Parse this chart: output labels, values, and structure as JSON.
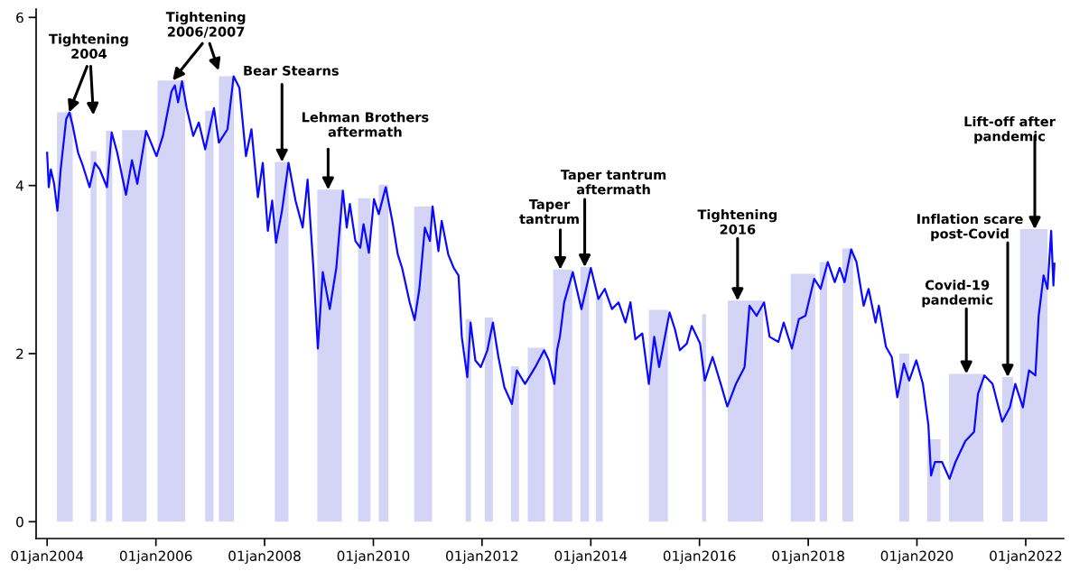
{
  "chart_data": {
    "type": "line",
    "xlim": [
      "2003-10-19",
      "2022-09-13"
    ],
    "ylim": [
      -0.2,
      6.1
    ],
    "xticks": [
      {
        "value": "2004-01-01",
        "label": "01jan2004"
      },
      {
        "value": "2006-01-01",
        "label": "01jan2006"
      },
      {
        "value": "2008-01-01",
        "label": "01jan2008"
      },
      {
        "value": "2010-01-01",
        "label": "01jan2010"
      },
      {
        "value": "2012-01-01",
        "label": "01jan2012"
      },
      {
        "value": "2014-01-01",
        "label": "01jan2014"
      },
      {
        "value": "2016-01-01",
        "label": "01jan2016"
      },
      {
        "value": "2018-01-01",
        "label": "01jan2018"
      },
      {
        "value": "2020-01-01",
        "label": "01jan2020"
      },
      {
        "value": "2022-01-01",
        "label": "01jan2022"
      }
    ],
    "yticks": [
      0,
      2,
      4,
      6
    ],
    "series": [
      {
        "type": "area",
        "color": "#d4d4f7",
        "x": [
          "2004-03-07",
          "2004-03-07",
          "2004-06-21",
          "2004-06-21",
          "2004-10-19",
          "2004-10-19",
          "2004-11-28",
          "2004-11-28",
          "2005-01-30",
          "2005-01-30",
          "2005-03-14",
          "2005-03-14",
          "2005-05-19",
          "2005-05-19",
          "2005-10-30",
          "2005-10-30",
          "2006-01-12",
          "2006-01-12",
          "2006-07-16",
          "2006-07-16",
          "2006-11-28",
          "2006-11-28",
          "2007-01-23",
          "2007-01-23",
          "2007-02-28",
          "2007-02-28",
          "2007-06-10",
          "2007-06-10",
          "2008-03-10",
          "2008-03-10",
          "2008-06-10",
          "2008-06-10",
          "2008-12-20",
          "2008-12-20",
          "2009-06-03",
          "2009-06-03",
          "2009-09-20",
          "2009-09-20",
          "2009-12-13",
          "2009-12-13",
          "2010-02-06",
          "2010-02-06",
          "2010-04-12",
          "2010-04-12",
          "2010-10-02",
          "2010-10-02",
          "2011-01-30",
          "2011-01-30",
          "2011-09-13",
          "2011-09-13",
          "2011-10-19",
          "2011-10-19",
          "2012-01-19",
          "2012-01-19",
          "2012-03-14",
          "2012-03-14",
          "2012-07-13",
          "2012-07-13",
          "2012-09-05",
          "2012-09-05",
          "2012-11-03",
          "2012-11-03",
          "2013-02-28",
          "2013-02-28",
          "2013-04-23",
          "2013-04-23",
          "2013-08-29",
          "2013-08-29",
          "2013-10-23",
          "2013-10-23",
          "2013-12-20",
          "2013-12-20",
          "2014-02-03",
          "2014-02-03",
          "2014-03-22",
          "2014-03-22",
          "2015-01-26",
          "2015-01-26",
          "2015-06-03",
          "2015-06-03",
          "2016-01-19",
          "2016-01-19",
          "2016-02-14",
          "2016-02-14",
          "2016-07-09",
          "2016-07-09",
          "2017-03-03",
          "2017-03-03",
          "2017-09-05",
          "2017-09-05",
          "2018-02-17",
          "2018-02-17",
          "2018-03-18",
          "2018-03-18",
          "2018-05-08",
          "2018-05-08",
          "2018-08-18",
          "2018-08-18",
          "2018-10-30",
          "2018-10-30",
          "2019-09-05",
          "2019-09-05",
          "2019-11-10",
          "2019-11-10",
          "2020-03-10",
          "2020-03-10",
          "2020-06-07",
          "2020-06-07",
          "2020-08-04",
          "2020-08-04",
          "2021-03-22",
          "2021-03-22",
          "2021-07-27",
          "2021-07-27",
          "2021-10-08",
          "2021-10-08",
          "2021-11-24",
          "2021-11-24",
          "2022-05-27",
          "2022-05-27"
        ],
        "values": [
          0,
          4.87,
          4.87,
          0,
          0,
          4.41,
          4.41,
          0,
          0,
          4.65,
          4.65,
          0,
          0,
          4.66,
          4.66,
          0,
          0,
          5.25,
          5.25,
          0,
          0,
          4.89,
          4.89,
          0,
          0,
          5.3,
          5.3,
          0,
          0,
          4.28,
          4.28,
          0,
          0,
          3.95,
          3.95,
          0,
          0,
          3.85,
          3.85,
          0,
          0,
          4.01,
          4.01,
          0,
          0,
          3.75,
          3.75,
          0,
          0,
          2.41,
          2.41,
          0,
          0,
          2.43,
          2.43,
          0,
          0,
          1.85,
          1.85,
          0,
          0,
          2.07,
          2.07,
          0,
          0,
          3.0,
          3.0,
          0,
          0,
          3.03,
          3.03,
          0,
          0,
          2.67,
          2.67,
          0,
          0,
          2.52,
          2.52,
          0,
          0,
          2.47,
          2.47,
          0,
          0,
          2.63,
          2.63,
          0,
          0,
          2.95,
          2.95,
          0,
          0,
          3.09,
          3.09,
          0,
          0,
          3.25,
          3.25,
          0,
          0,
          2.0,
          2.0,
          0,
          0,
          0.98,
          0.98,
          0,
          0,
          1.76,
          1.76,
          0,
          0,
          1.72,
          1.72,
          0,
          0,
          3.48,
          3.48,
          0
        ]
      },
      {
        "color": "#0a0aff",
        "x": [
          "2004-01-01",
          "2004-01-12",
          "2004-01-26",
          "2004-02-17",
          "2004-03-10",
          "2004-04-01",
          "2004-05-08",
          "2004-05-30",
          "2004-06-21",
          "2004-07-27",
          "2004-08-29",
          "2004-10-12",
          "2004-11-17",
          "2004-12-20",
          "2005-02-06",
          "2005-03-10",
          "2005-04-16",
          "2005-06-14",
          "2005-07-24",
          "2005-08-29",
          "2005-10-27",
          "2006-01-05",
          "2006-02-17",
          "2006-04-16",
          "2006-05-08",
          "2006-05-30",
          "2006-06-25",
          "2006-07-27",
          "2006-09-09",
          "2006-10-16",
          "2006-11-28",
          "2007-01-26",
          "2007-02-28",
          "2007-04-27",
          "2007-06-07",
          "2007-07-16",
          "2007-08-29",
          "2007-10-05",
          "2007-11-17",
          "2007-12-20",
          "2008-01-23",
          "2008-02-21",
          "2008-03-18",
          "2008-04-27",
          "2008-06-10",
          "2008-07-27",
          "2008-09-13",
          "2008-10-16",
          "2008-11-06",
          "2008-11-24",
          "2008-12-24",
          "2009-01-26",
          "2009-03-14",
          "2009-04-27",
          "2009-06-10",
          "2009-07-06",
          "2009-07-27",
          "2009-09-02",
          "2009-10-05",
          "2009-10-27",
          "2009-12-02",
          "2010-01-05",
          "2010-02-06",
          "2010-03-25",
          "2010-05-08",
          "2010-06-14",
          "2010-07-13",
          "2010-09-02",
          "2010-10-05",
          "2010-11-06",
          "2010-12-13",
          "2011-01-16",
          "2011-02-03",
          "2011-03-14",
          "2011-04-05",
          "2011-05-19",
          "2011-06-25",
          "2011-07-27",
          "2011-08-18",
          "2011-09-24",
          "2011-10-16",
          "2011-11-17",
          "2011-12-24",
          "2012-02-06",
          "2012-03-14",
          "2012-04-20",
          "2012-05-30",
          "2012-07-20",
          "2012-08-22",
          "2012-10-16",
          "2012-12-24",
          "2013-02-21",
          "2013-03-25",
          "2013-05-01",
          "2013-05-19",
          "2013-06-07",
          "2013-07-06",
          "2013-09-02",
          "2013-10-30",
          "2014-01-01",
          "2014-02-21",
          "2014-04-05",
          "2014-05-23",
          "2014-07-06",
          "2014-08-22",
          "2014-09-24",
          "2014-10-27",
          "2014-12-13",
          "2015-01-26",
          "2015-03-03",
          "2015-04-05",
          "2015-06-14",
          "2015-07-20",
          "2015-08-22",
          "2015-10-08",
          "2015-11-10",
          "2016-01-05",
          "2016-02-06",
          "2016-03-29",
          "2016-05-23",
          "2016-07-06",
          "2016-09-02",
          "2016-10-30",
          "2016-12-02",
          "2017-01-19",
          "2017-03-10",
          "2017-04-16",
          "2017-06-14",
          "2017-07-20",
          "2017-09-13",
          "2017-10-30",
          "2017-12-13",
          "2018-02-10",
          "2018-03-25",
          "2018-05-12",
          "2018-06-28",
          "2018-07-31",
          "2018-09-02",
          "2018-10-16",
          "2018-11-21",
          "2019-01-08",
          "2019-02-10",
          "2019-03-29",
          "2019-04-20",
          "2019-06-07",
          "2019-07-16",
          "2019-08-22",
          "2019-10-05",
          "2019-11-10",
          "2019-12-28",
          "2020-02-10",
          "2020-03-18",
          "2020-04-05",
          "2020-05-01",
          "2020-06-18",
          "2020-08-07",
          "2020-09-16",
          "2020-11-21",
          "2021-01-19",
          "2021-02-14",
          "2021-03-29",
          "2021-05-23",
          "2021-07-27",
          "2021-09-16",
          "2021-10-23",
          "2021-12-13",
          "2022-01-23",
          "2022-03-07",
          "2022-03-29",
          "2022-05-01",
          "2022-05-27",
          "2022-06-21",
          "2022-07-06",
          "2022-07-13"
        ],
        "values": [
          4.39,
          3.98,
          4.19,
          4.02,
          3.7,
          4.19,
          4.79,
          4.87,
          4.71,
          4.39,
          4.23,
          3.98,
          4.27,
          4.19,
          3.98,
          4.63,
          4.39,
          3.89,
          4.3,
          4.02,
          4.65,
          4.35,
          4.59,
          5.12,
          5.19,
          4.99,
          5.24,
          4.92,
          4.59,
          4.75,
          4.43,
          4.92,
          4.51,
          4.67,
          5.3,
          5.16,
          4.35,
          4.67,
          3.86,
          4.27,
          3.46,
          3.82,
          3.32,
          3.7,
          4.27,
          3.82,
          3.5,
          4.07,
          3.5,
          3.02,
          2.06,
          2.97,
          2.53,
          3.02,
          3.94,
          3.5,
          3.78,
          3.34,
          3.26,
          3.54,
          3.2,
          3.84,
          3.66,
          3.98,
          3.58,
          3.18,
          3.02,
          2.61,
          2.4,
          2.77,
          3.5,
          3.34,
          3.75,
          3.22,
          3.58,
          3.18,
          3.02,
          2.93,
          2.2,
          1.72,
          2.37,
          1.92,
          1.84,
          2.04,
          2.37,
          1.96,
          1.6,
          1.4,
          1.8,
          1.64,
          1.84,
          2.04,
          1.92,
          1.64,
          2.04,
          2.2,
          2.61,
          2.97,
          2.53,
          3.02,
          2.65,
          2.77,
          2.53,
          2.61,
          2.37,
          2.61,
          2.17,
          2.24,
          1.64,
          2.2,
          1.84,
          2.49,
          2.29,
          2.04,
          2.12,
          2.33,
          2.12,
          1.68,
          1.96,
          1.64,
          1.37,
          1.64,
          1.84,
          2.57,
          2.45,
          2.61,
          2.2,
          2.14,
          2.37,
          2.06,
          2.41,
          2.45,
          2.89,
          2.77,
          3.09,
          2.85,
          3.02,
          2.85,
          3.24,
          3.09,
          2.57,
          2.77,
          2.37,
          2.57,
          2.08,
          1.96,
          1.48,
          1.88,
          1.68,
          1.92,
          1.64,
          1.15,
          0.55,
          0.71,
          0.71,
          0.51,
          0.71,
          0.96,
          1.07,
          1.52,
          1.74,
          1.64,
          1.19,
          1.36,
          1.64,
          1.36,
          1.8,
          1.74,
          2.45,
          2.93,
          2.77,
          3.46,
          2.81,
          3.07
        ]
      }
    ],
    "annotations": [
      {
        "text": "Tightening\n2004",
        "x": "2004-05-27",
        "y": 4.87
      },
      {
        "text": "Tightening\n2006/2007",
        "x": "2006-04-23",
        "y": 5.25
      },
      {
        "text": "Bear Stearns",
        "x": "2008-04-27",
        "y": 4.28
      },
      {
        "text": "Lehman Brothers\naftermath",
        "x": "2009-03-03",
        "y": 3.95
      },
      {
        "text": "Taper\ntantrum",
        "x": "2013-06-10",
        "y": 3.0
      },
      {
        "text": "Taper tantrum\naftermath",
        "x": "2013-11-21",
        "y": 3.03
      },
      {
        "text": "Tightening\n2016",
        "x": "2016-09-13",
        "y": 2.63
      },
      {
        "text": "Covid-19\npandemic",
        "x": "2020-11-28",
        "y": 1.76
      },
      {
        "text": "Inflation scare\npost-Covid",
        "x": "2021-09-02",
        "y": 1.72
      },
      {
        "text": "Lift-off after\npandemic",
        "x": "2022-03-03",
        "y": 3.48
      }
    ]
  }
}
